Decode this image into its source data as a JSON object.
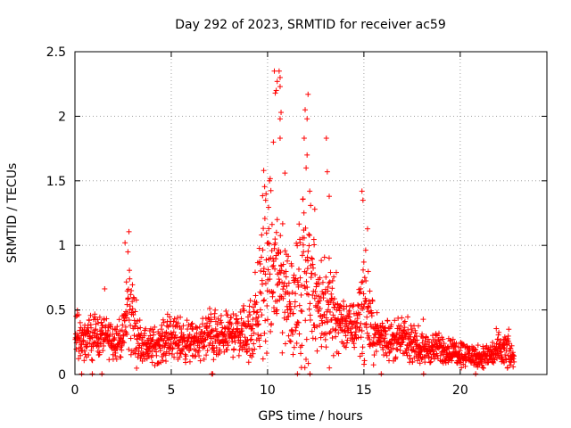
{
  "chart_data": {
    "type": "scatter",
    "title": "Day 292 of 2023, SRMTID for receiver ac59",
    "xlabel": "GPS time / hours",
    "ylabel": "SRMTID / TECUs",
    "xlim": [
      0,
      24.5
    ],
    "ylim": [
      0,
      2.5
    ],
    "xticks": [
      0,
      5,
      10,
      15,
      20
    ],
    "yticks": [
      0,
      0.5,
      1,
      1.5,
      2,
      2.5
    ],
    "xtick_labels": [
      "0",
      "5",
      "10",
      "15",
      "20"
    ],
    "ytick_labels": [
      "0",
      "0.5",
      "1",
      "1.5",
      "2",
      "2.5"
    ],
    "grid": true,
    "marker": "+",
    "color": "#ff0000",
    "series": [
      {
        "name": "SRMTID",
        "envelope_x": [
          0.0,
          0.5,
          1.0,
          1.5,
          2.0,
          2.5,
          2.8,
          3.2,
          3.5,
          4.0,
          4.5,
          5.0,
          5.5,
          6.0,
          6.5,
          7.0,
          7.5,
          8.0,
          8.5,
          9.0,
          9.5,
          9.8,
          10.0,
          10.3,
          10.6,
          11.0,
          11.5,
          11.9,
          12.3,
          12.7,
          13.0,
          13.5,
          14.0,
          14.5,
          14.9,
          15.2,
          15.5,
          16.0,
          16.5,
          17.0,
          17.5,
          18.0,
          18.5,
          19.0,
          19.5,
          20.0,
          20.5,
          21.0,
          21.5,
          22.0,
          22.5,
          22.8
        ],
        "median": [
          0.3,
          0.28,
          0.3,
          0.3,
          0.27,
          0.28,
          0.55,
          0.32,
          0.22,
          0.22,
          0.25,
          0.28,
          0.27,
          0.25,
          0.25,
          0.32,
          0.25,
          0.32,
          0.33,
          0.3,
          0.5,
          0.75,
          0.7,
          0.8,
          0.75,
          0.6,
          0.55,
          0.7,
          0.7,
          0.55,
          0.55,
          0.45,
          0.4,
          0.35,
          0.55,
          0.5,
          0.3,
          0.3,
          0.25,
          0.28,
          0.22,
          0.2,
          0.2,
          0.2,
          0.18,
          0.17,
          0.15,
          0.13,
          0.15,
          0.18,
          0.18,
          0.1
        ],
        "spread": [
          0.12,
          0.1,
          0.12,
          0.1,
          0.1,
          0.1,
          0.3,
          0.15,
          0.1,
          0.1,
          0.1,
          0.12,
          0.12,
          0.1,
          0.1,
          0.15,
          0.1,
          0.12,
          0.12,
          0.15,
          0.3,
          0.5,
          0.4,
          0.45,
          0.4,
          0.3,
          0.3,
          0.45,
          0.4,
          0.25,
          0.3,
          0.2,
          0.15,
          0.12,
          0.3,
          0.25,
          0.12,
          0.1,
          0.1,
          0.1,
          0.08,
          0.08,
          0.08,
          0.08,
          0.07,
          0.07,
          0.06,
          0.06,
          0.07,
          0.1,
          0.1,
          0.05
        ],
        "outliers": [
          [
            10.35,
            2.35
          ],
          [
            10.6,
            2.35
          ],
          [
            10.65,
            2.3
          ],
          [
            10.5,
            2.27
          ],
          [
            10.65,
            2.23
          ],
          [
            10.4,
            2.18
          ],
          [
            10.45,
            2.2
          ],
          [
            12.1,
            2.17
          ],
          [
            11.95,
            2.05
          ],
          [
            12.05,
            1.98
          ],
          [
            10.7,
            2.03
          ],
          [
            10.65,
            1.98
          ],
          [
            10.3,
            1.8
          ],
          [
            10.65,
            1.83
          ],
          [
            11.9,
            1.83
          ],
          [
            13.05,
            1.83
          ],
          [
            12.05,
            1.7
          ],
          [
            12.0,
            1.6
          ],
          [
            9.8,
            1.58
          ],
          [
            10.1,
            1.5
          ],
          [
            10.9,
            1.56
          ],
          [
            13.1,
            1.57
          ],
          [
            14.9,
            1.42
          ],
          [
            14.95,
            1.35
          ],
          [
            13.2,
            1.38
          ],
          [
            12.45,
            1.28
          ],
          [
            9.9,
            1.35
          ],
          [
            10.5,
            1.2
          ],
          [
            2.6,
            1.02
          ],
          [
            2.75,
            0.95
          ]
        ],
        "dropouts_x": [
          0.35,
          0.9,
          1.4,
          7.1,
          7.15,
          11.55,
          12.2,
          15.9,
          18.1,
          20.8
        ]
      }
    ]
  }
}
